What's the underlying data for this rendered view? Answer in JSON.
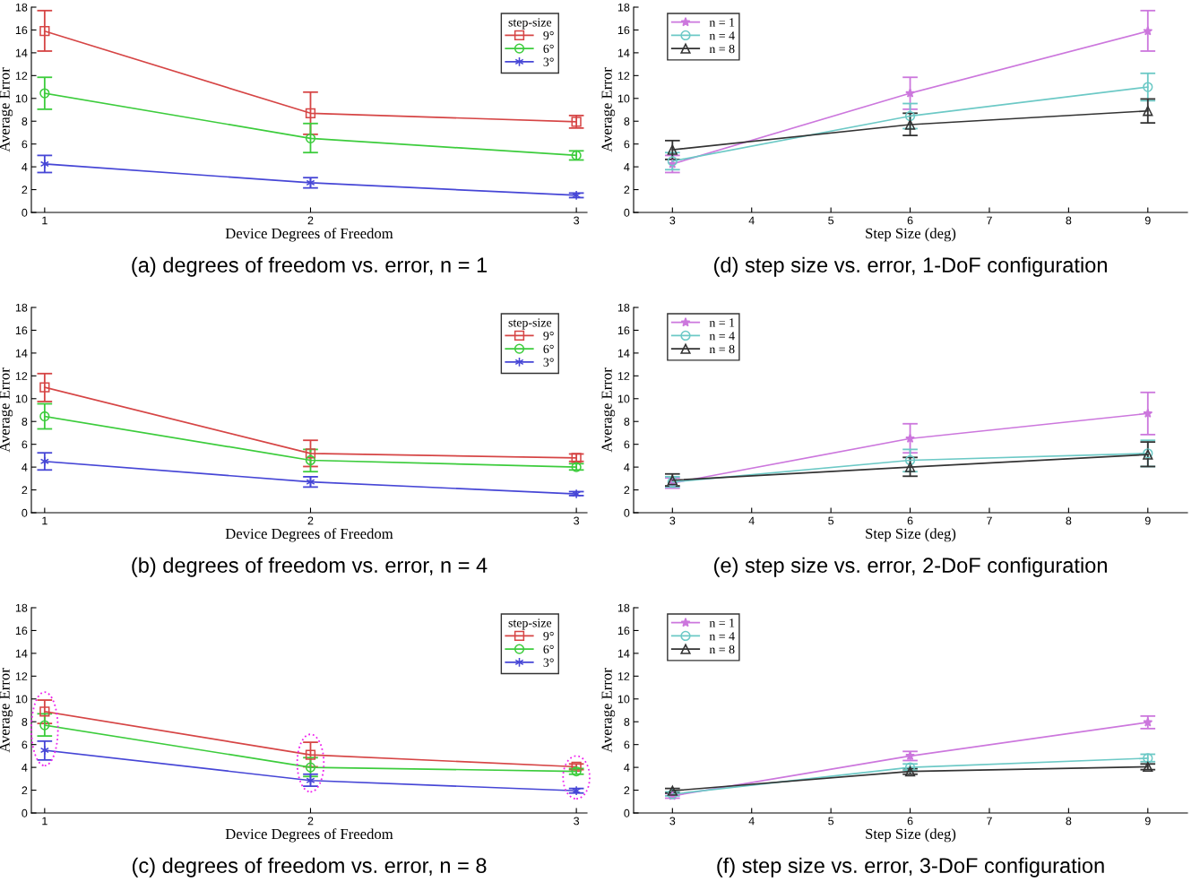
{
  "chart_data": [
    {
      "type": "line",
      "title": "(a) degrees of freedom vs. error, n = 1",
      "xlabel": "Device Degrees of Freedom",
      "ylabel": "Average Error",
      "x": [
        1,
        2,
        3
      ],
      "xlim": [
        0.95,
        3.04
      ],
      "xticks": [
        1,
        2,
        3
      ],
      "ylim": [
        0,
        18
      ],
      "yticks": [
        0,
        2,
        4,
        6,
        8,
        10,
        12,
        14,
        16,
        18
      ],
      "legend": "top right",
      "legend_title": "step-size",
      "grid": false,
      "series": [
        {
          "name": "9°",
          "color": "#d64545",
          "marker": "square",
          "values": [
            15.9,
            8.7,
            7.95
          ],
          "errors": [
            [
              14.15,
              17.7
            ],
            [
              6.85,
              10.55
            ],
            [
              7.4,
              8.5
            ]
          ]
        },
        {
          "name": "6°",
          "color": "#3ccc3c",
          "marker": "circle",
          "values": [
            10.45,
            6.5,
            5.0
          ],
          "errors": [
            [
              9.05,
              11.85
            ],
            [
              5.25,
              7.8
            ],
            [
              4.6,
              5.4
            ]
          ]
        },
        {
          "name": "3°",
          "color": "#4646d6",
          "marker": "cross",
          "values": [
            4.25,
            2.6,
            1.5
          ],
          "errors": [
            [
              3.5,
              5.0
            ],
            [
              2.15,
              3.05
            ],
            [
              1.3,
              1.7
            ]
          ]
        }
      ]
    },
    {
      "type": "line",
      "title": "(d) step size vs. error, 1-DoF configuration",
      "xlabel": "Step Size (deg)",
      "ylabel": "Average Error",
      "x": [
        3,
        6,
        9
      ],
      "xlim": [
        2.51,
        9.5
      ],
      "xticks": [
        3,
        4,
        5,
        6,
        7,
        8,
        9
      ],
      "ylim": [
        0,
        18
      ],
      "yticks": [
        0,
        2,
        4,
        6,
        8,
        10,
        12,
        14,
        16,
        18
      ],
      "legend": "top left",
      "grid": false,
      "series": [
        {
          "name": "n = 1",
          "color": "#cc77dd",
          "marker": "star",
          "values": [
            4.25,
            10.45,
            15.9
          ],
          "errors": [
            [
              3.5,
              5.0
            ],
            [
              9.05,
              11.85
            ],
            [
              14.15,
              17.7
            ]
          ]
        },
        {
          "name": "n = 4",
          "color": "#6cc9c6",
          "marker": "circle",
          "values": [
            4.5,
            8.45,
            11.0
          ],
          "errors": [
            [
              3.75,
              5.25
            ],
            [
              7.35,
              9.55
            ],
            [
              9.8,
              12.2
            ]
          ]
        },
        {
          "name": "n = 8",
          "color": "#333333",
          "marker": "triangle",
          "values": [
            5.5,
            7.7,
            8.9
          ],
          "errors": [
            [
              4.65,
              6.3
            ],
            [
              6.75,
              8.7
            ],
            [
              7.85,
              9.95
            ]
          ]
        }
      ]
    },
    {
      "type": "line",
      "title": "(b) degrees of freedom vs. error, n = 4",
      "xlabel": "Device Degrees of Freedom",
      "ylabel": "Average Error",
      "x": [
        1,
        2,
        3
      ],
      "xlim": [
        0.95,
        3.04
      ],
      "xticks": [
        1,
        2,
        3
      ],
      "ylim": [
        0,
        18
      ],
      "yticks": [
        0,
        2,
        4,
        6,
        8,
        10,
        12,
        14,
        16,
        18
      ],
      "legend": "top right",
      "legend_title": "step-size",
      "grid": false,
      "series": [
        {
          "name": "9°",
          "color": "#d64545",
          "marker": "square",
          "values": [
            11.0,
            5.2,
            4.8
          ],
          "errors": [
            [
              9.75,
              12.2
            ],
            [
              4.05,
              6.35
            ],
            [
              4.5,
              5.15
            ]
          ]
        },
        {
          "name": "6°",
          "color": "#3ccc3c",
          "marker": "circle",
          "values": [
            8.45,
            4.6,
            4.0
          ],
          "errors": [
            [
              7.35,
              9.55
            ],
            [
              3.6,
              5.55
            ],
            [
              3.75,
              4.3
            ]
          ]
        },
        {
          "name": "3°",
          "color": "#4646d6",
          "marker": "cross",
          "values": [
            4.5,
            2.7,
            1.65
          ],
          "errors": [
            [
              3.75,
              5.25
            ],
            [
              2.25,
              3.15
            ],
            [
              1.5,
              1.85
            ]
          ]
        }
      ]
    },
    {
      "type": "line",
      "title": "(e) step size vs. error, 2-DoF configuration",
      "xlabel": "Step Size (deg)",
      "ylabel": "Average Error",
      "x": [
        3,
        6,
        9
      ],
      "xlim": [
        2.51,
        9.5
      ],
      "xticks": [
        3,
        4,
        5,
        6,
        7,
        8,
        9
      ],
      "ylim": [
        0,
        18
      ],
      "yticks": [
        0,
        2,
        4,
        6,
        8,
        10,
        12,
        14,
        16,
        18
      ],
      "legend": "top left",
      "grid": false,
      "series": [
        {
          "name": "n = 1",
          "color": "#cc77dd",
          "marker": "star",
          "values": [
            2.6,
            6.5,
            8.7
          ],
          "errors": [
            [
              2.15,
              3.05
            ],
            [
              5.25,
              7.8
            ],
            [
              6.85,
              10.55
            ]
          ]
        },
        {
          "name": "n = 4",
          "color": "#6cc9c6",
          "marker": "circle",
          "values": [
            2.7,
            4.6,
            5.2
          ],
          "errors": [
            [
              2.25,
              3.15
            ],
            [
              3.6,
              5.55
            ],
            [
              4.05,
              6.35
            ]
          ]
        },
        {
          "name": "n = 8",
          "color": "#333333",
          "marker": "triangle",
          "values": [
            2.85,
            4.0,
            5.1
          ],
          "errors": [
            [
              2.35,
              3.4
            ],
            [
              3.2,
              4.85
            ],
            [
              4.05,
              6.2
            ]
          ]
        }
      ]
    },
    {
      "type": "line",
      "title": "(c) degrees of freedom vs. error, n = 8",
      "xlabel": "Device Degrees of Freedom",
      "ylabel": "Average Error",
      "x": [
        1,
        2,
        3
      ],
      "xlim": [
        0.95,
        3.04
      ],
      "xticks": [
        1,
        2,
        3
      ],
      "ylim": [
        0,
        18
      ],
      "yticks": [
        0,
        2,
        4,
        6,
        8,
        10,
        12,
        14,
        16,
        18
      ],
      "legend": "top right",
      "legend_title": "step-size",
      "grid": false,
      "series": [
        {
          "name": "9°",
          "color": "#d64545",
          "marker": "square",
          "values": [
            8.9,
            5.1,
            4.05
          ],
          "errors": [
            [
              7.85,
              9.9
            ],
            [
              4.05,
              6.2
            ],
            [
              3.8,
              4.3
            ]
          ]
        },
        {
          "name": "6°",
          "color": "#3ccc3c",
          "marker": "circle",
          "values": [
            7.7,
            4.0,
            3.65
          ],
          "errors": [
            [
              6.75,
              8.7
            ],
            [
              3.2,
              4.85
            ],
            [
              3.4,
              3.9
            ]
          ]
        },
        {
          "name": "3°",
          "color": "#4646d6",
          "marker": "cross",
          "values": [
            5.5,
            2.85,
            1.95
          ],
          "errors": [
            [
              4.65,
              6.3
            ],
            [
              2.35,
              3.4
            ],
            [
              1.75,
              2.15
            ]
          ]
        }
      ]
    },
    {
      "type": "line",
      "title": "(f) step size vs. error, 3-DoF configuration",
      "xlabel": "Step Size (deg)",
      "ylabel": "Average Error",
      "x": [
        3,
        6,
        9
      ],
      "xlim": [
        2.51,
        9.5
      ],
      "xticks": [
        3,
        4,
        5,
        6,
        7,
        8,
        9
      ],
      "ylim": [
        0,
        18
      ],
      "yticks": [
        0,
        2,
        4,
        6,
        8,
        10,
        12,
        14,
        16,
        18
      ],
      "legend": "top left",
      "grid": false,
      "series": [
        {
          "name": "n = 1",
          "color": "#cc77dd",
          "marker": "star",
          "values": [
            1.5,
            5.0,
            7.95
          ],
          "errors": [
            [
              1.3,
              1.7
            ],
            [
              4.6,
              5.4
            ],
            [
              7.4,
              8.5
            ]
          ]
        },
        {
          "name": "n = 4",
          "color": "#6cc9c6",
          "marker": "circle",
          "values": [
            1.65,
            4.0,
            4.8
          ],
          "errors": [
            [
              1.5,
              1.85
            ],
            [
              3.75,
              4.3
            ],
            [
              4.5,
              5.15
            ]
          ]
        },
        {
          "name": "n = 8",
          "color": "#333333",
          "marker": "triangle",
          "values": [
            1.95,
            3.65,
            4.05
          ],
          "errors": [
            [
              1.75,
              2.15
            ],
            [
              3.4,
              3.9
            ],
            [
              3.8,
              4.3
            ]
          ]
        }
      ]
    }
  ]
}
